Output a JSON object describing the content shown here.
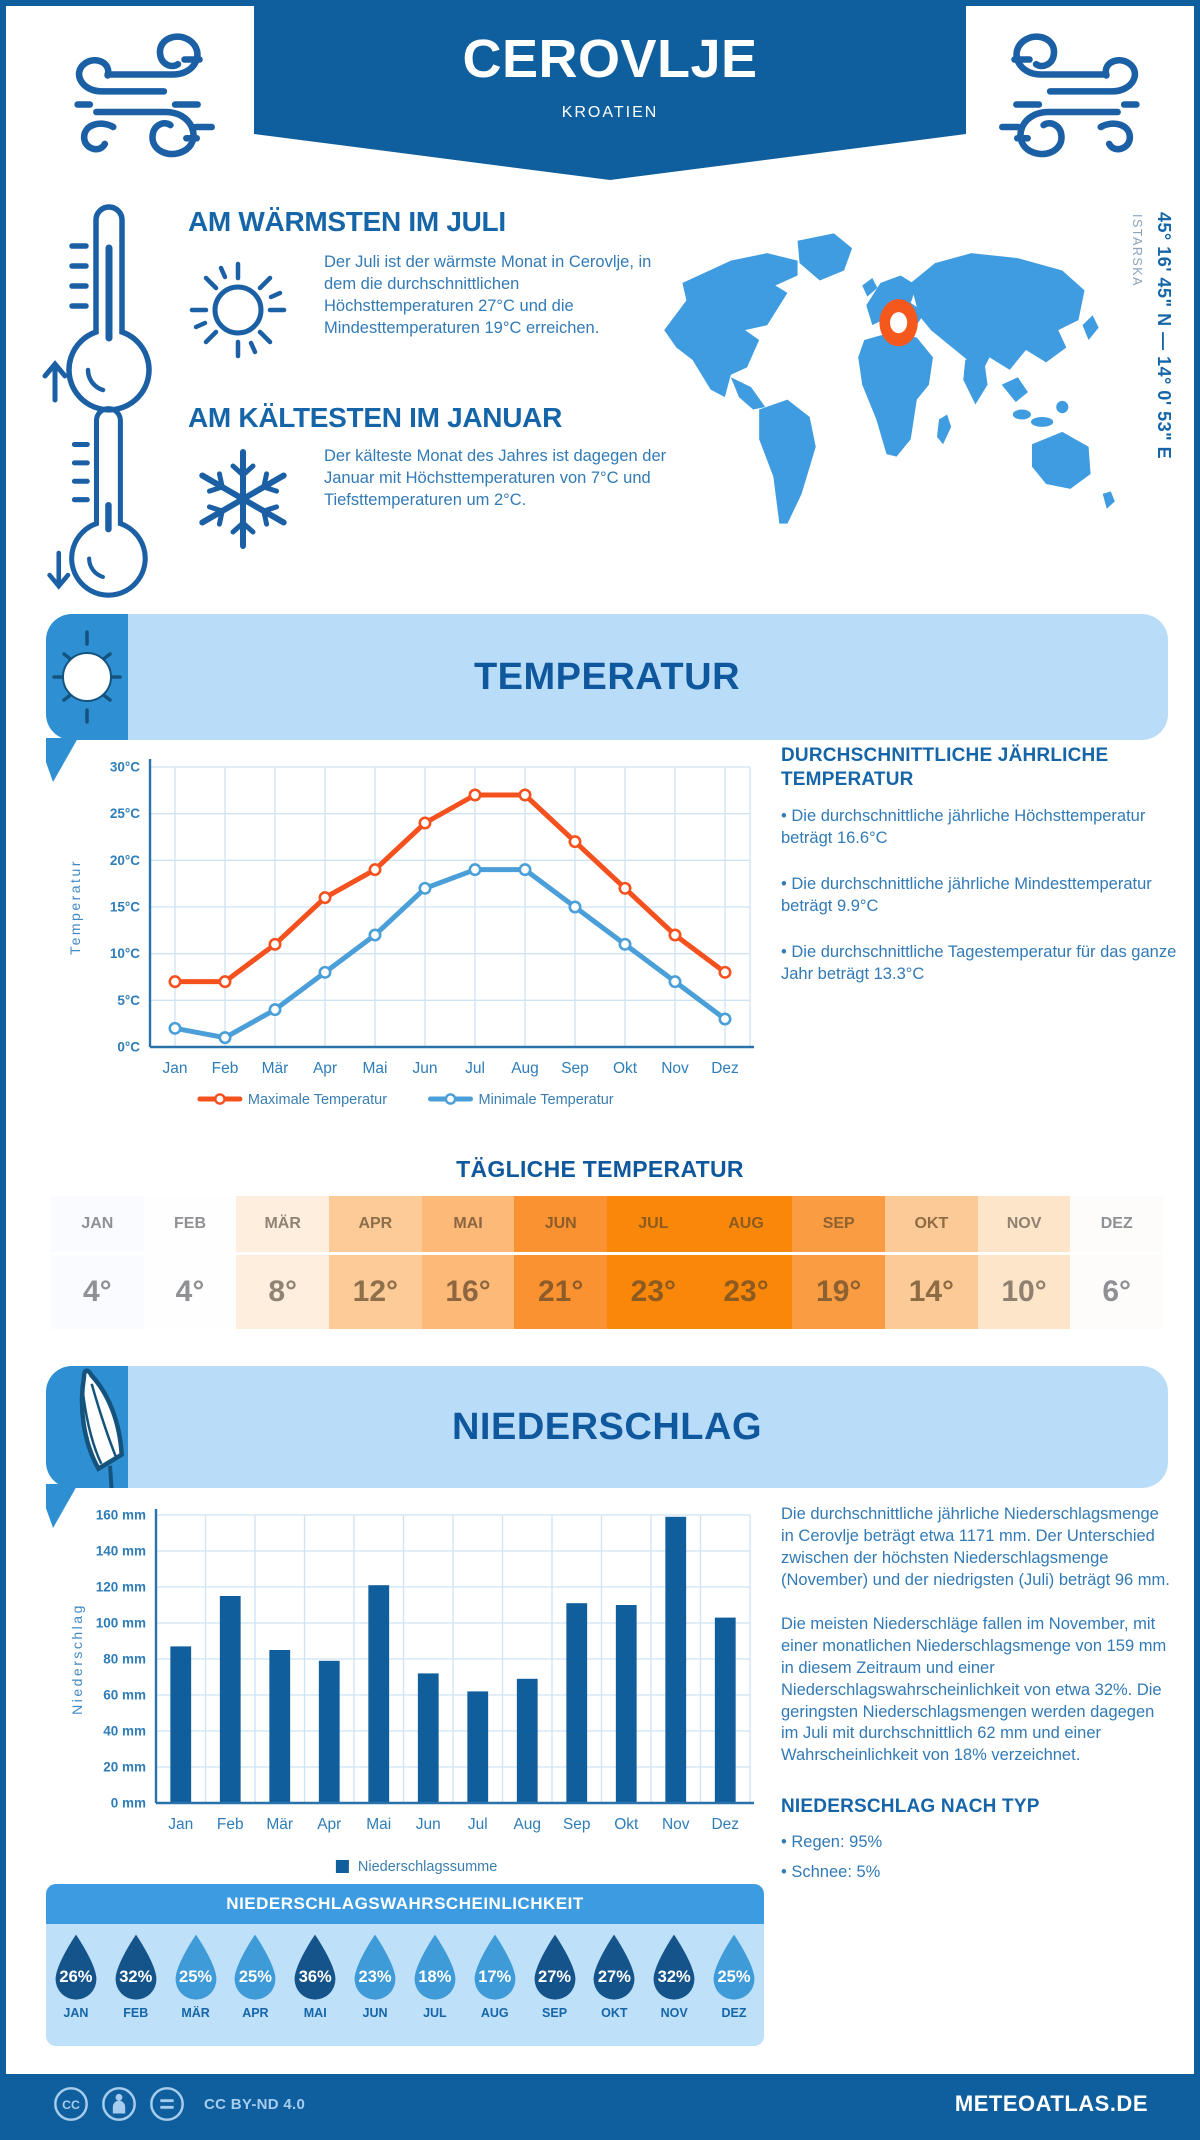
{
  "colors": {
    "frame": "#0f5f9e",
    "heading_blue": "#1565a8",
    "body_blue": "#327ab5",
    "banner_bg": "#b9ddf8",
    "banner_accent": "#2e90d3",
    "map_blue": "#3f9ce0",
    "marker_orange": "#f4581d",
    "line_max": "#f4511e",
    "line_min": "#4a9fd8",
    "bar_blue": "#115e9c",
    "droplet_dark": "#15548a",
    "droplet_light": "#3f9bd8"
  },
  "header": {
    "title": "CEROVLJE",
    "subtitle": "KROATIEN"
  },
  "warmest": {
    "heading": "AM WÄRMSTEN IM JULI",
    "body": "Der Juli ist der wärmste Monat in Cerovlje, in dem die durchschnittlichen Höchsttemperaturen 27°C und die Mindesttemperaturen 19°C erreichen."
  },
  "coldest": {
    "heading": "AM KÄLTESTEN IM JANUAR",
    "body": "Der kälteste Monat des Jahres ist dagegen der Januar mit Höchsttemperaturen von 7°C und Tiefsttemperaturen um 2°C."
  },
  "map": {
    "coordinates": "45° 16' 45\" N — 14° 0' 53\" E",
    "region": "ISTARSKA"
  },
  "temperature": {
    "banner": "TEMPERATUR",
    "annual_heading": "DURCHSCHNITTLICHE JÄHRLICHE TEMPERATUR",
    "annual_bullets": [
      "• Die durchschnittliche jährliche Höchsttemperatur beträgt 16.6°C",
      "• Die durchschnittliche jährliche Mindesttemperatur beträgt 9.9°C",
      "• Die durchschnittliche Tagestemperatur für das ganze Jahr beträgt 13.3°C"
    ],
    "daily_heading": "TÄGLICHE TEMPERATUR",
    "daily_months": [
      "JAN",
      "FEB",
      "MÄR",
      "APR",
      "MAI",
      "JUN",
      "JUL",
      "AUG",
      "SEP",
      "OKT",
      "NOV",
      "DEZ"
    ],
    "daily_values": [
      "4°",
      "4°",
      "8°",
      "12°",
      "16°",
      "21°",
      "23°",
      "23°",
      "19°",
      "14°",
      "10°",
      "6°"
    ],
    "daily_cell_bg": [
      "#fafbfe",
      "#fefeff",
      "#fdeedd",
      "#fccb98",
      "#fcb978",
      "#fa9232",
      "#f9880a",
      "#f9880a",
      "#fa9c42",
      "#fcca96",
      "#fde5ca",
      "#fdfcfb"
    ],
    "daily_text_color": [
      "#8f9094",
      "#8f9094",
      "#8f8376",
      "#8d6f4b",
      "#8d6640",
      "#8d5c28",
      "#8d5a1f",
      "#8d5a1f",
      "#8d6130",
      "#8d6c44",
      "#8f8070",
      "#8f9094"
    ]
  },
  "precipitation": {
    "banner": "NIEDERSCHLAG",
    "para1": "Die durchschnittliche jährliche Niederschlagsmenge in Cerovlje beträgt etwa 1171 mm. Der Unterschied zwischen der höchsten Niederschlagsmenge (November) und der niedrigsten (Juli) beträgt 96 mm.",
    "para2": "Die meisten Niederschläge fallen im November, mit einer monatlichen Niederschlagsmenge von 159 mm in diesem Zeitraum und einer Niederschlagswahrscheinlichkeit von etwa 32%. Die geringsten Niederschlagsmengen werden dagegen im Juli mit durchschnittlich 62 mm und einer Wahrscheinlichkeit von 18% verzeichnet.",
    "type_heading": "NIEDERSCHLAG NACH TYP",
    "type_items": [
      "• Regen: 95%",
      "• Schnee: 5%"
    ],
    "probability": {
      "heading": "NIEDERSCHLAGSWAHRSCHEINLICHKEIT",
      "months": [
        "JAN",
        "FEB",
        "MÄR",
        "APR",
        "MAI",
        "JUN",
        "JUL",
        "AUG",
        "SEP",
        "OKT",
        "NOV",
        "DEZ"
      ],
      "values": [
        "26%",
        "32%",
        "25%",
        "25%",
        "36%",
        "23%",
        "18%",
        "17%",
        "27%",
        "27%",
        "32%",
        "25%"
      ],
      "dark": [
        true,
        true,
        false,
        false,
        true,
        false,
        false,
        false,
        true,
        true,
        true,
        false
      ]
    }
  },
  "footer": {
    "license": "CC BY-ND 4.0",
    "site": "METEOATLAS.DE"
  },
  "chart_data": [
    {
      "type": "line",
      "categories": [
        "Jan",
        "Feb",
        "Mär",
        "Apr",
        "Mai",
        "Jun",
        "Jul",
        "Aug",
        "Sep",
        "Okt",
        "Nov",
        "Dez"
      ],
      "series": [
        {
          "name": "Maximale Temperatur",
          "color": "#f4511e",
          "values": [
            7,
            7,
            11,
            16,
            19,
            24,
            27,
            27,
            22,
            17,
            12,
            8
          ]
        },
        {
          "name": "Minimale Temperatur",
          "color": "#4a9fd8",
          "values": [
            2,
            1,
            4,
            8,
            12,
            17,
            19,
            19,
            15,
            11,
            7,
            3
          ]
        }
      ],
      "xlabel": "",
      "ylabel": "Temperatur",
      "ylim": [
        0,
        30
      ],
      "ytick_step": 5,
      "ytick_suffix": "°C",
      "grid": true,
      "legend_position": "bottom"
    },
    {
      "type": "bar",
      "categories": [
        "Jan",
        "Feb",
        "Mär",
        "Apr",
        "Mai",
        "Jun",
        "Jul",
        "Aug",
        "Sep",
        "Okt",
        "Nov",
        "Dez"
      ],
      "series": [
        {
          "name": "Niederschlagssumme",
          "color": "#115e9c",
          "values": [
            87,
            115,
            85,
            79,
            121,
            72,
            62,
            69,
            111,
            110,
            159,
            103
          ]
        }
      ],
      "xlabel": "",
      "ylabel": "Niederschlag",
      "ylim": [
        0,
        160
      ],
      "ytick_step": 20,
      "ytick_suffix": " mm",
      "grid": true,
      "legend_position": "bottom"
    }
  ]
}
